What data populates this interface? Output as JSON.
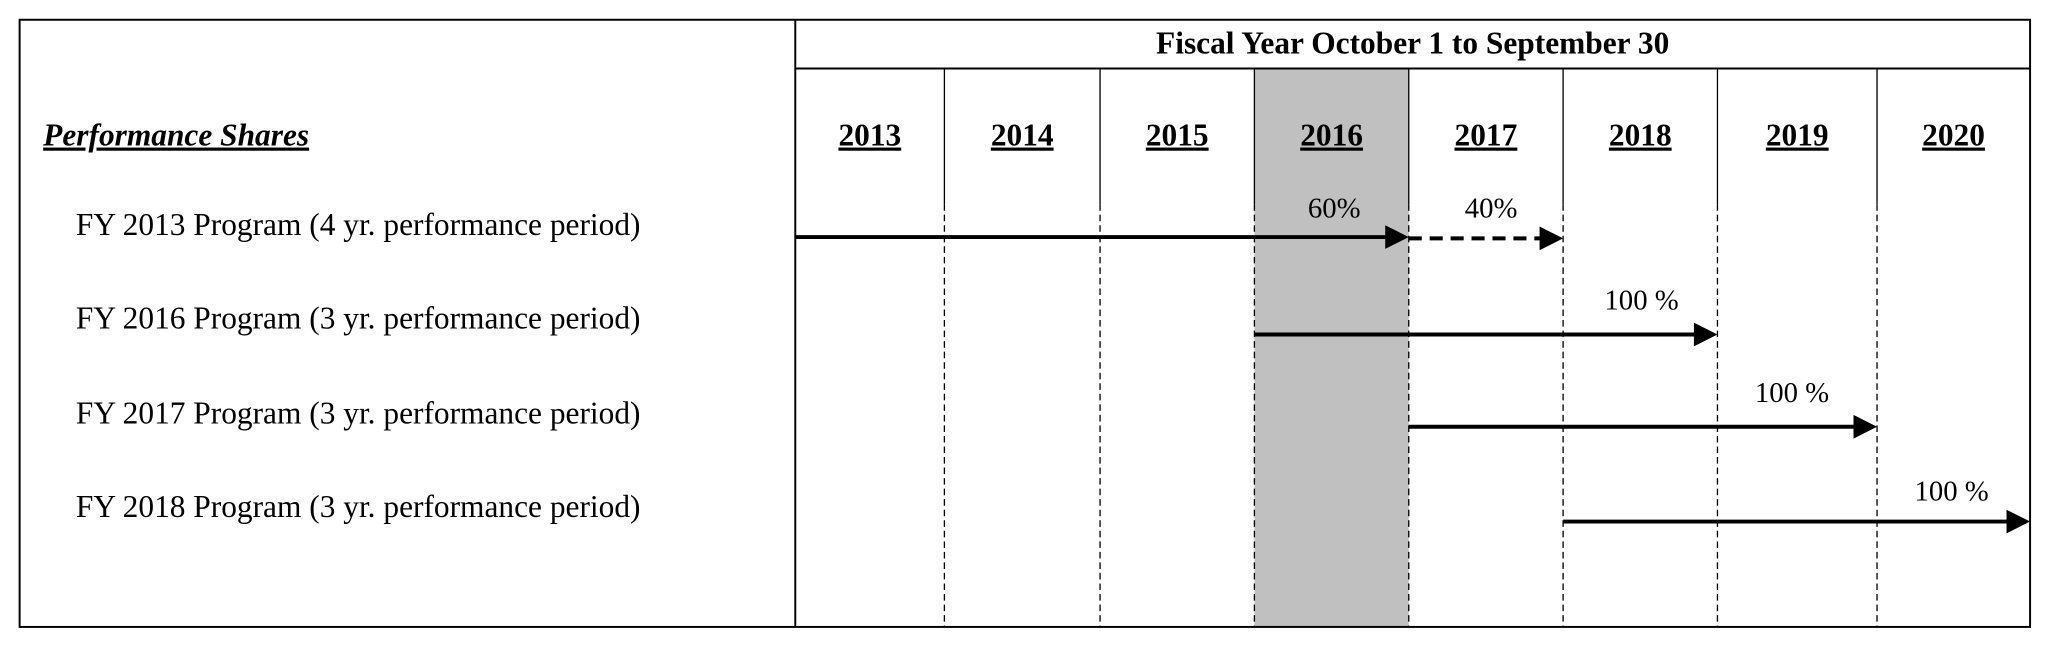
{
  "header": {
    "row_title": "Performance Shares",
    "period_title": "Fiscal Year October 1 to September 30",
    "years": [
      "2013",
      "2014",
      "2015",
      "2016",
      "2017",
      "2018",
      "2019",
      "2020"
    ]
  },
  "programs": [
    {
      "label": "FY 2013 Program (4 yr. performance period)",
      "segment_labels": [
        "60%",
        "40%"
      ]
    },
    {
      "label": "FY 2016 Program (3 yr. performance period)",
      "segment_labels": [
        "100 %"
      ]
    },
    {
      "label": "FY 2017 Program (3 yr. performance period)",
      "segment_labels": [
        "100 %"
      ]
    },
    {
      "label": "FY 2018 Program (3 yr. performance period)",
      "segment_labels": [
        "100 %"
      ]
    }
  ]
}
